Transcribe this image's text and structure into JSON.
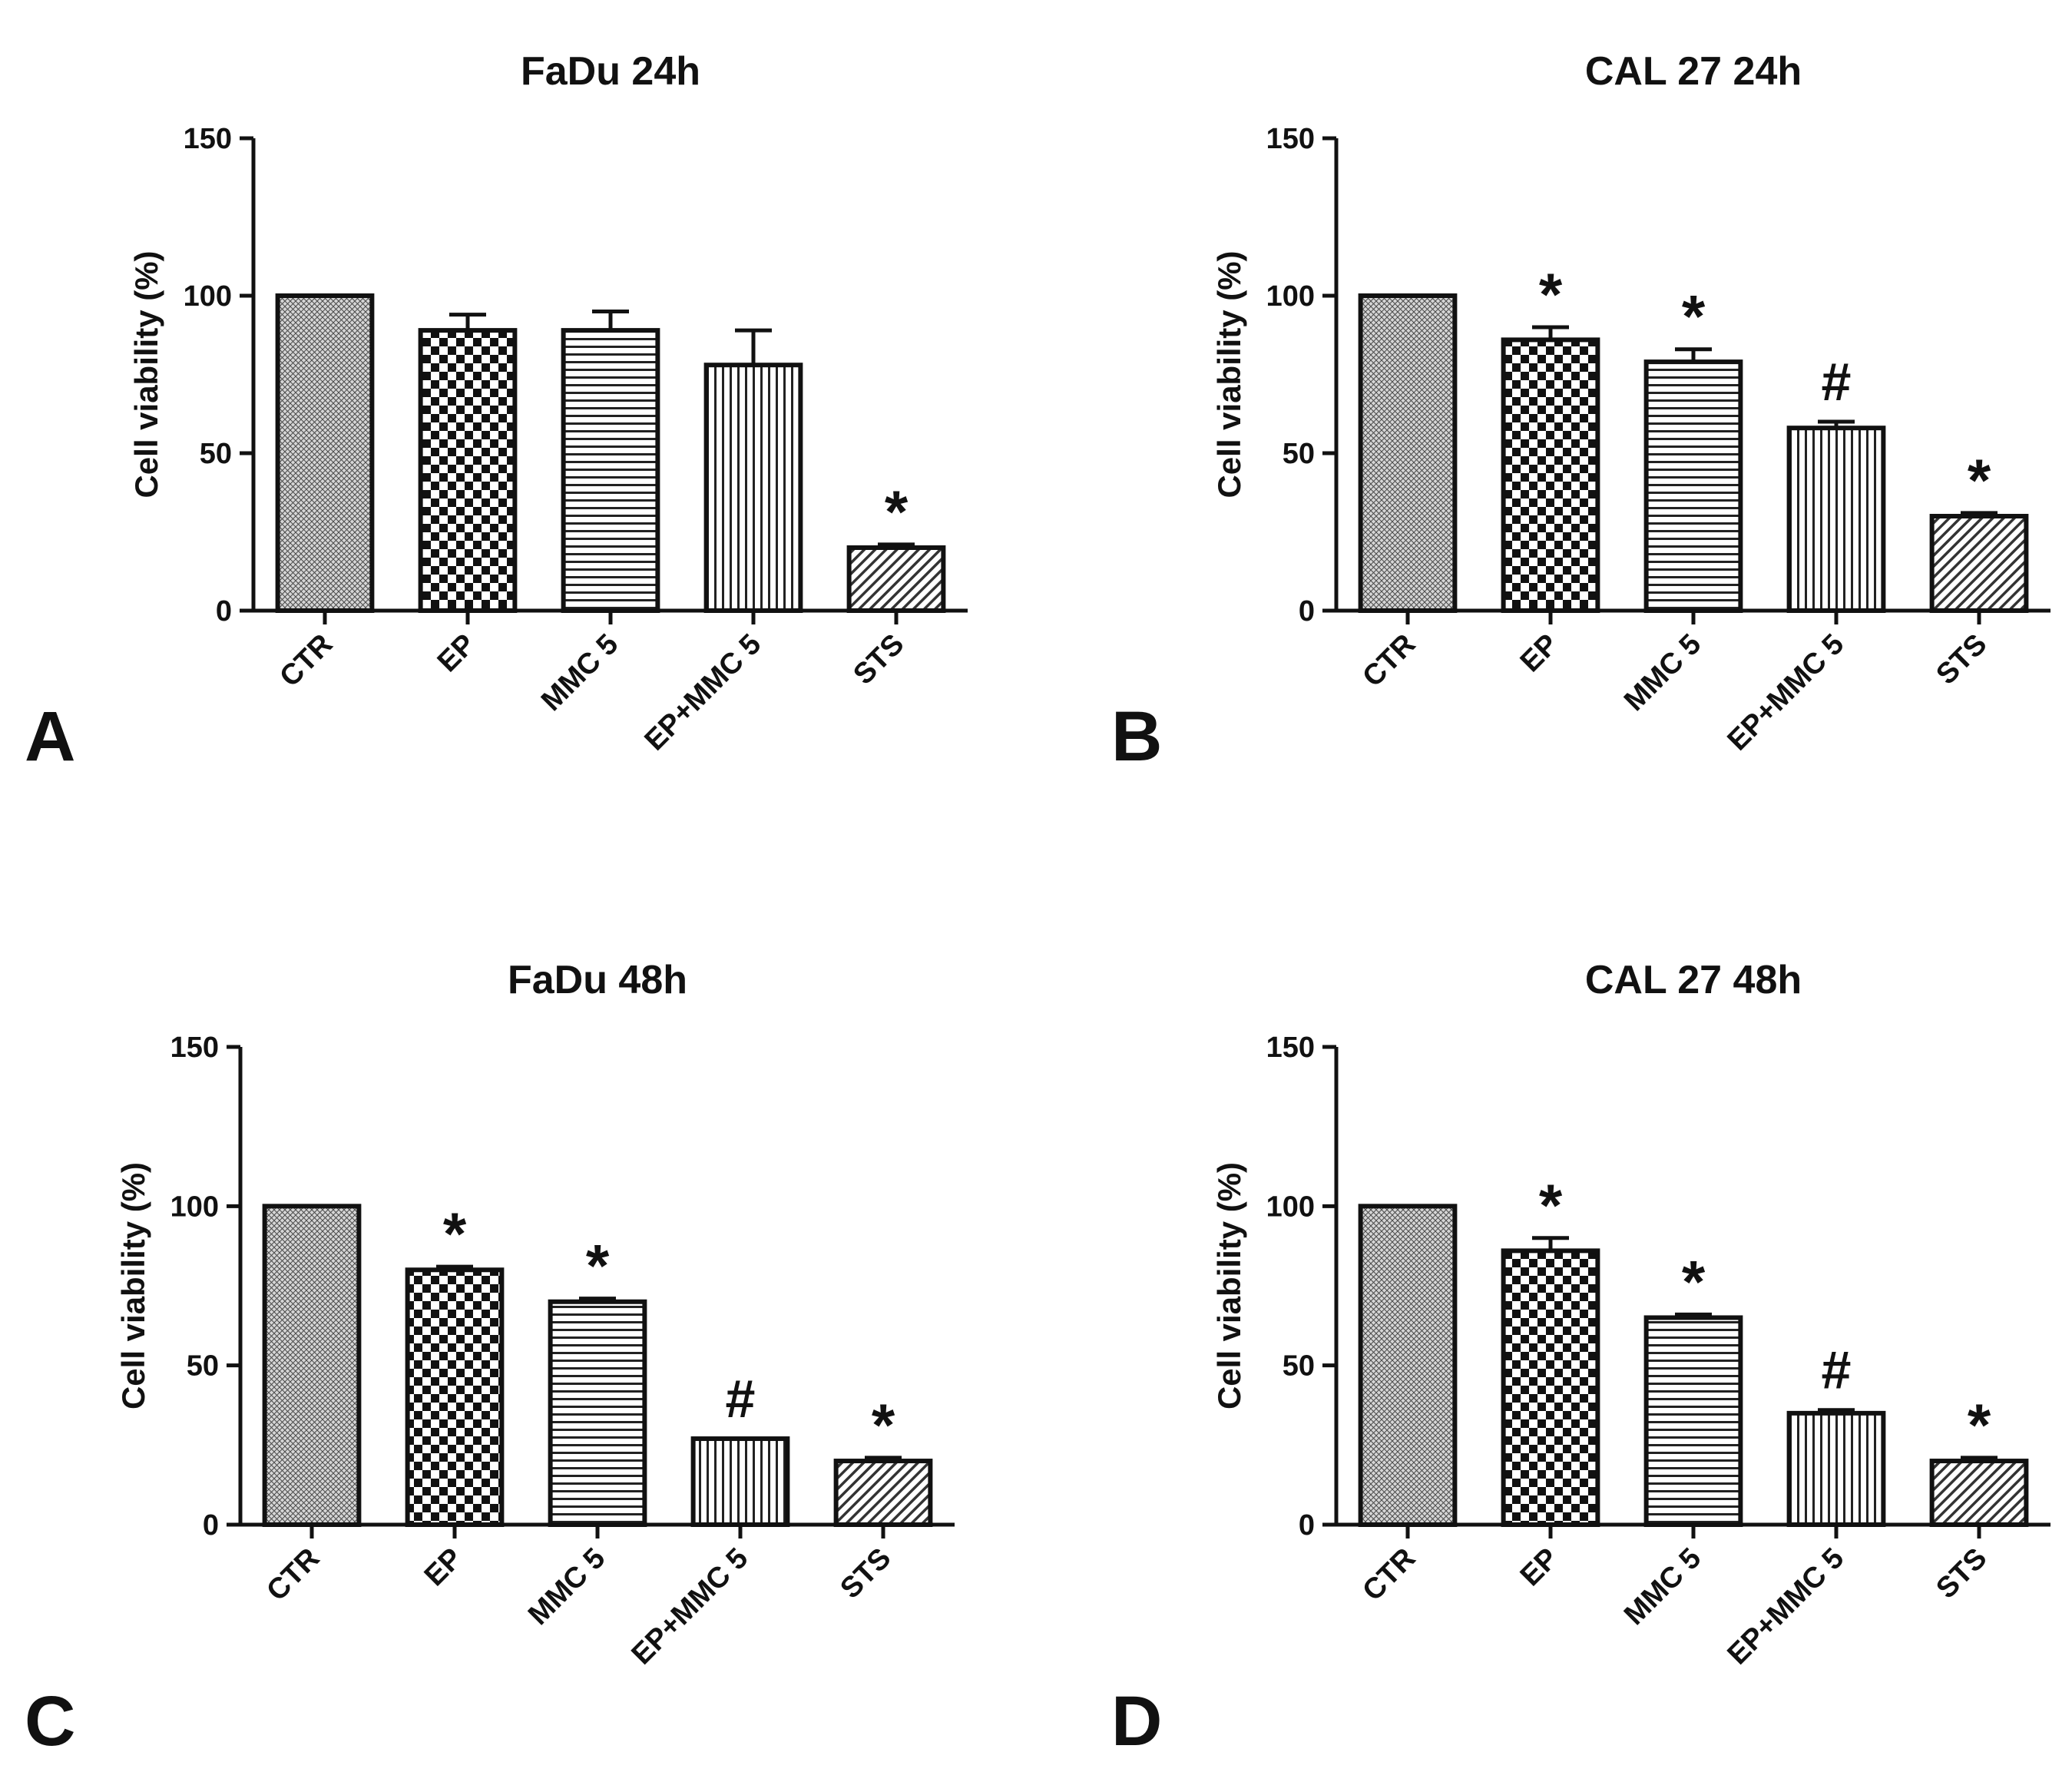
{
  "figure": {
    "colors": {
      "ink": "#111111",
      "bar_fill": "#ffffff"
    },
    "icons": {
      "CTR": "fine-crosshatch-pattern",
      "EP": "checkerboard-pattern",
      "MMC 5": "horizontal-stripes-pattern",
      "EP+MMC 5": "vertical-stripes-pattern",
      "STS": "diagonal-stripes-pattern"
    }
  },
  "chart_data": [
    {
      "panel": "A",
      "type": "bar",
      "title": "FaDu 24h",
      "ylabel": "Cell viability (%)",
      "xlabel": "",
      "ylim": [
        0,
        150
      ],
      "yticks": [
        0,
        50,
        100,
        150
      ],
      "categories": [
        "CTR",
        "EP",
        "MMC 5",
        "EP+MMC 5",
        "STS"
      ],
      "values": [
        100,
        89,
        89,
        78,
        20
      ],
      "errors": [
        0,
        5,
        6,
        11,
        1
      ],
      "annotations": [
        "",
        "",
        "",
        "",
        "*"
      ]
    },
    {
      "panel": "B",
      "type": "bar",
      "title": "CAL 27 24h",
      "ylabel": "Cell viability (%)",
      "xlabel": "",
      "ylim": [
        0,
        150
      ],
      "yticks": [
        0,
        50,
        100,
        150
      ],
      "categories": [
        "CTR",
        "EP",
        "MMC 5",
        "EP+MMC 5",
        "STS"
      ],
      "values": [
        100,
        86,
        79,
        58,
        30
      ],
      "errors": [
        0,
        4,
        4,
        2,
        1
      ],
      "annotations": [
        "",
        "*",
        "*",
        "#",
        "*"
      ]
    },
    {
      "panel": "C",
      "type": "bar",
      "title": "FaDu 48h",
      "ylabel": "Cell viability (%)",
      "xlabel": "",
      "ylim": [
        0,
        150
      ],
      "yticks": [
        0,
        50,
        100,
        150
      ],
      "categories": [
        "CTR",
        "EP",
        "MMC 5",
        "EP+MMC 5",
        "STS"
      ],
      "values": [
        100,
        80,
        70,
        27,
        20
      ],
      "errors": [
        0,
        1,
        1,
        0,
        1
      ],
      "annotations": [
        "",
        "*",
        "*",
        "#",
        "*"
      ]
    },
    {
      "panel": "D",
      "type": "bar",
      "title": "CAL 27 48h",
      "ylabel": "Cell viability (%)",
      "xlabel": "",
      "ylim": [
        0,
        150
      ],
      "yticks": [
        0,
        50,
        100,
        150
      ],
      "categories": [
        "CTR",
        "EP",
        "MMC 5",
        "EP+MMC 5",
        "STS"
      ],
      "values": [
        100,
        86,
        65,
        35,
        20
      ],
      "errors": [
        0,
        4,
        1,
        1,
        1
      ],
      "annotations": [
        "",
        "*",
        "*",
        "#",
        "*"
      ]
    }
  ]
}
